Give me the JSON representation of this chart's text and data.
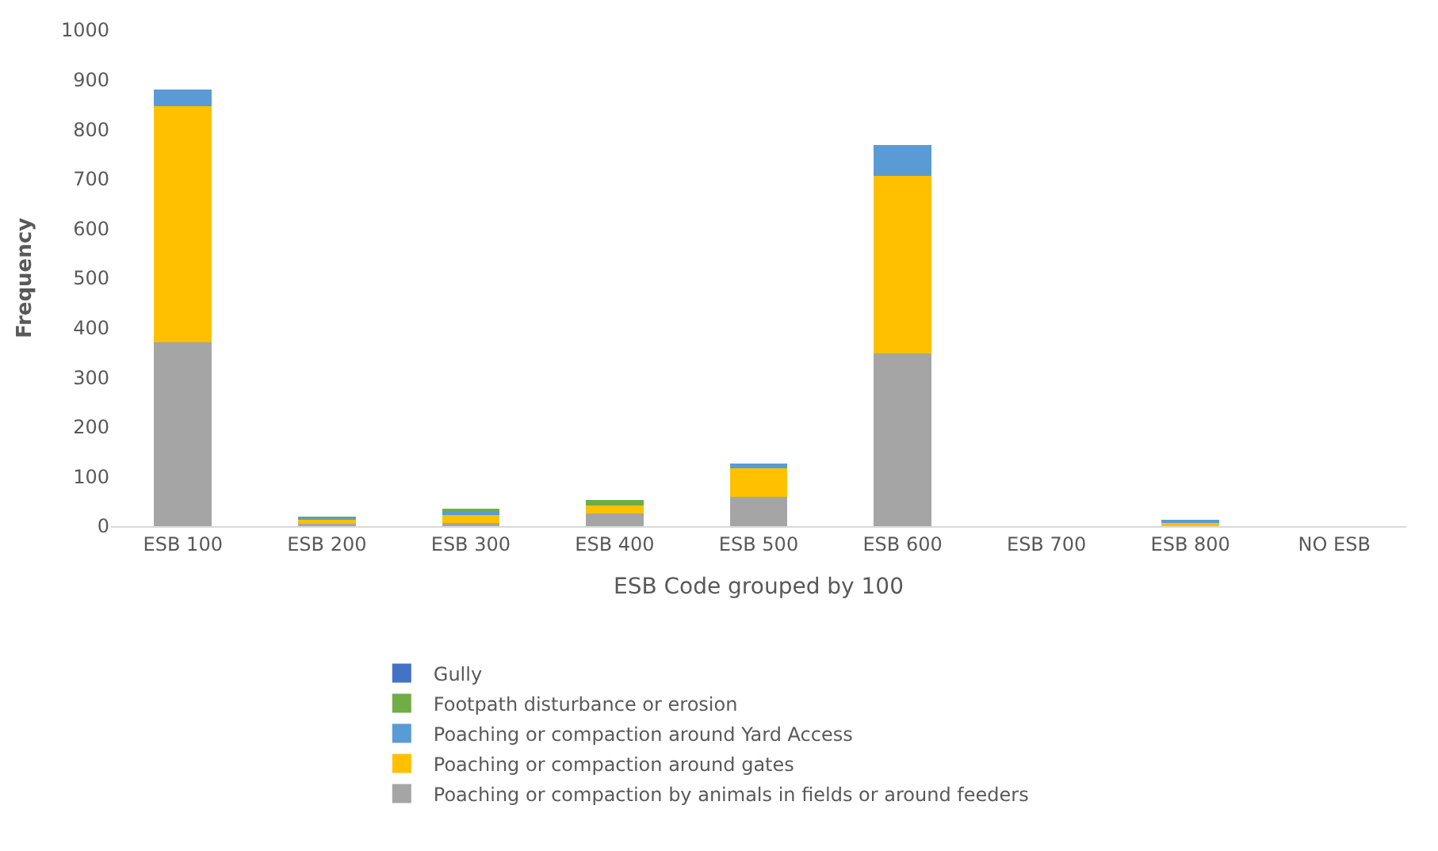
{
  "chart_data": {
    "type": "bar",
    "stacked": true,
    "xlabel": "ESB Code grouped by 100",
    "ylabel": "Frequency",
    "categories": [
      "ESB 100",
      "ESB 200",
      "ESB 300",
      "ESB 400",
      "ESB 500",
      "ESB 600",
      "ESB 700",
      "ESB 800",
      "NO ESB"
    ],
    "series": [
      {
        "name": "Poaching or compaction by animals in fields or around feeders",
        "color": "#a5a5a5",
        "values": [
          370,
          5,
          6,
          26,
          59,
          348,
          0,
          null,
          0
        ]
      },
      {
        "name": "Poaching or compaction around gates",
        "color": "#ffc000",
        "values": [
          477,
          8,
          18,
          16,
          57,
          358,
          0,
          7,
          0
        ]
      },
      {
        "name": "Poaching or compaction around Yard Access",
        "color": "#5b9bd5",
        "values": [
          33,
          3,
          6,
          null,
          11,
          62,
          0,
          4,
          0
        ]
      },
      {
        "name": "Footpath disturbance or erosion",
        "color": "#70ad47",
        "values": [
          0,
          2,
          5,
          10,
          0,
          0,
          0,
          0,
          0
        ]
      },
      {
        "name": "Gully",
        "color": "#4472c4",
        "values": [
          0,
          0,
          0,
          0,
          0,
          0,
          0,
          0,
          0
        ]
      }
    ],
    "ylim": [
      0,
      1000
    ],
    "yticks": [
      0,
      100,
      200,
      300,
      400,
      500,
      600,
      700,
      800,
      900,
      1000
    ],
    "grid": false,
    "legend": "bottom"
  }
}
